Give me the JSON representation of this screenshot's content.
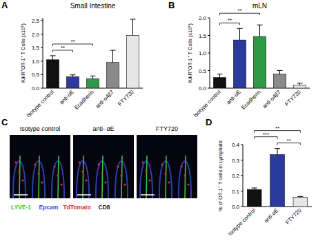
{
  "chart_data": [
    {
      "type": "bar",
      "panel_label": "A",
      "title": "Small Intestine",
      "y_label": "KikR⁺OT-1⁺ T Cells (x10⁶)",
      "categories": [
        "Isotype control",
        "anti-αE",
        "Ecadherin",
        "anti-α4β7",
        "FTY720"
      ],
      "values": [
        1.05,
        0.42,
        0.35,
        0.95,
        1.95
      ],
      "errors": [
        0.15,
        0.07,
        0.1,
        0.45,
        0.6
      ],
      "colors": [
        "#111111",
        "#2b3a9c",
        "#2f9a45",
        "#8a8a8a",
        "#e6e6e6"
      ],
      "ylim": [
        0,
        2.6
      ],
      "yticks": [
        {
          "value": 0,
          "label": "0.0"
        },
        0.5,
        {
          "value": 1,
          "label": "1.0"
        },
        1.5,
        {
          "value": 2,
          "label": "2.0"
        },
        2.5
      ],
      "annotations": [
        {
          "from": 0,
          "to": 1,
          "label": "**"
        },
        {
          "from": 0,
          "to": 2,
          "label": "**"
        }
      ]
    },
    {
      "type": "bar",
      "panel_label": "B",
      "title": "mLN",
      "y_label": "KikR⁺OT-1⁺ T Cells (x10⁶)",
      "categories": [
        "Isotype control",
        "anti-αE",
        "Ecadherin",
        "anti-α4β7",
        "FTY720"
      ],
      "values": [
        0.3,
        1.37,
        1.47,
        0.4,
        0.08
      ],
      "errors": [
        0.1,
        0.33,
        0.33,
        0.1,
        0.06
      ],
      "colors": [
        "#111111",
        "#2b3a9c",
        "#2f9a45",
        "#8a8a8a",
        "#e6e6e6"
      ],
      "ylim": [
        0,
        2
      ],
      "yticks": [
        {
          "value": 0,
          "label": "0.0"
        },
        0.5,
        {
          "value": 1,
          "label": "1.0"
        },
        1.5,
        {
          "value": 2,
          "label": "2.0"
        }
      ],
      "annotations": [
        {
          "from": 0,
          "to": 1,
          "label": "**"
        },
        {
          "from": 0,
          "to": 2,
          "label": "**"
        }
      ]
    },
    {
      "type": "bar",
      "panel_label": "D",
      "y_label": "% of OT-1⁺ T cells in Lymphatic",
      "categories": [
        "Isotype control",
        "anti-αE",
        "FTY720"
      ],
      "values": [
        0.11,
        0.335,
        0.06
      ],
      "errors": [
        0.01,
        0.04,
        0.005
      ],
      "colors": [
        "#111111",
        "#2b3a9c",
        "#e6e6e6"
      ],
      "ylim": [
        0,
        0.4
      ],
      "yticks": [
        {
          "value": 0,
          "label": "0.0"
        },
        0.1,
        0.2,
        0.3,
        0.4
      ],
      "annotations": [
        {
          "from": 1,
          "to": 2,
          "label": "**"
        },
        {
          "from": 0,
          "to": 1,
          "label": "***"
        },
        {
          "from": 0,
          "to": 2,
          "label": "**"
        }
      ]
    }
  ],
  "panel_c": {
    "panel_label": "C",
    "images": [
      "Isotype control",
      "anti- αE",
      "FTY720"
    ],
    "legend": [
      {
        "label": "LYVE-1",
        "color": "#39c24a"
      },
      {
        "label": "Epcam",
        "color": "#3a4fd0"
      },
      {
        "label": "TdTomato",
        "color": "#e53030"
      },
      {
        "label": "CD8",
        "color": "#ffffff"
      }
    ]
  }
}
